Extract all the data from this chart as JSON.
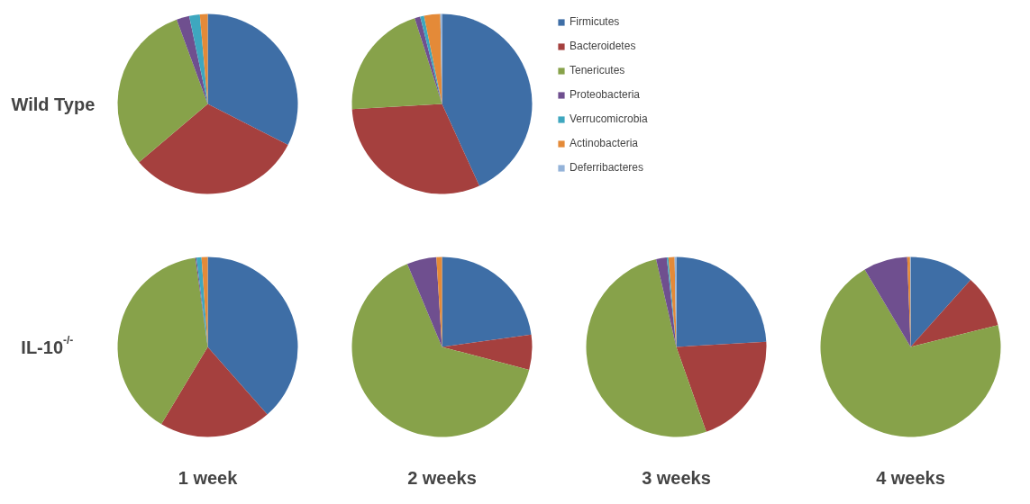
{
  "chart_data": [
    {
      "type": "pie",
      "ylabel": "Wild Type",
      "categories": [
        null,
        null,
        null,
        null,
        null,
        null,
        null
      ],
      "values": [
        32.5,
        31.3,
        30.6,
        2.3,
        1.9,
        1.4,
        0
      ],
      "colors": [
        "#3e6ea6",
        "#a5403e",
        "#87a24a",
        "#6f4f8f",
        "#3ea7bf",
        "#e48a38",
        "#94b3d9"
      ]
    },
    {
      "type": "pie",
      "legend": "right",
      "categories": [
        "Firmicutes",
        "Bacteroidetes",
        "Tenericutes",
        "Proteobacteria",
        "Verrucomicrobia",
        "Actinobacteria",
        "Deferribacteres"
      ],
      "values": [
        43.2,
        30.9,
        21.0,
        1.0,
        0.7,
        2.9,
        0.3
      ],
      "colors": [
        "#3e6ea6",
        "#a5403e",
        "#87a24a",
        "#6f4f8f",
        "#3ea7bf",
        "#e48a38",
        "#94b3d9"
      ]
    },
    {
      "type": "pie",
      "ylabel": "IL-10$^{-/-}$",
      "xlabel": "1 week",
      "categories": [
        null,
        null,
        null,
        null,
        null,
        null,
        null
      ],
      "values": [
        38.5,
        20.1,
        39.2,
        0.2,
        0.9,
        1.1,
        0
      ],
      "colors": [
        "#3e6ea6",
        "#a5403e",
        "#87a24a",
        "#6f4f8f",
        "#3ea7bf",
        "#e48a38",
        "#94b3d9"
      ]
    },
    {
      "type": "pie",
      "xlabel": "2 weeks",
      "categories": [
        null,
        null,
        null,
        null,
        null,
        null,
        null
      ],
      "values": [
        22.8,
        6.3,
        64.6,
        5.3,
        0,
        1.0,
        0
      ],
      "colors": [
        "#3e6ea6",
        "#a5403e",
        "#87a24a",
        "#6f4f8f",
        "#3ea7bf",
        "#e48a38",
        "#94b3d9"
      ]
    },
    {
      "type": "pie",
      "xlabel": "3 weeks",
      "categories": [
        null,
        null,
        null,
        null,
        null,
        null,
        null
      ],
      "values": [
        24.1,
        20.5,
        51.8,
        1.9,
        0.3,
        1.1,
        0.3
      ],
      "colors": [
        "#3e6ea6",
        "#a5403e",
        "#87a24a",
        "#6f4f8f",
        "#3ea7bf",
        "#e48a38",
        "#94b3d9"
      ]
    },
    {
      "type": "pie",
      "xlabel": "4 weeks",
      "categories": [
        null,
        null,
        null,
        null,
        null,
        null,
        null
      ],
      "values": [
        11.6,
        9.5,
        70.4,
        7.9,
        0,
        0.5,
        0.1
      ],
      "colors": [
        "#3e6ea6",
        "#a5403e",
        "#87a24a",
        "#6f4f8f",
        "#3ea7bf",
        "#e48a38",
        "#94b3d9"
      ]
    }
  ]
}
